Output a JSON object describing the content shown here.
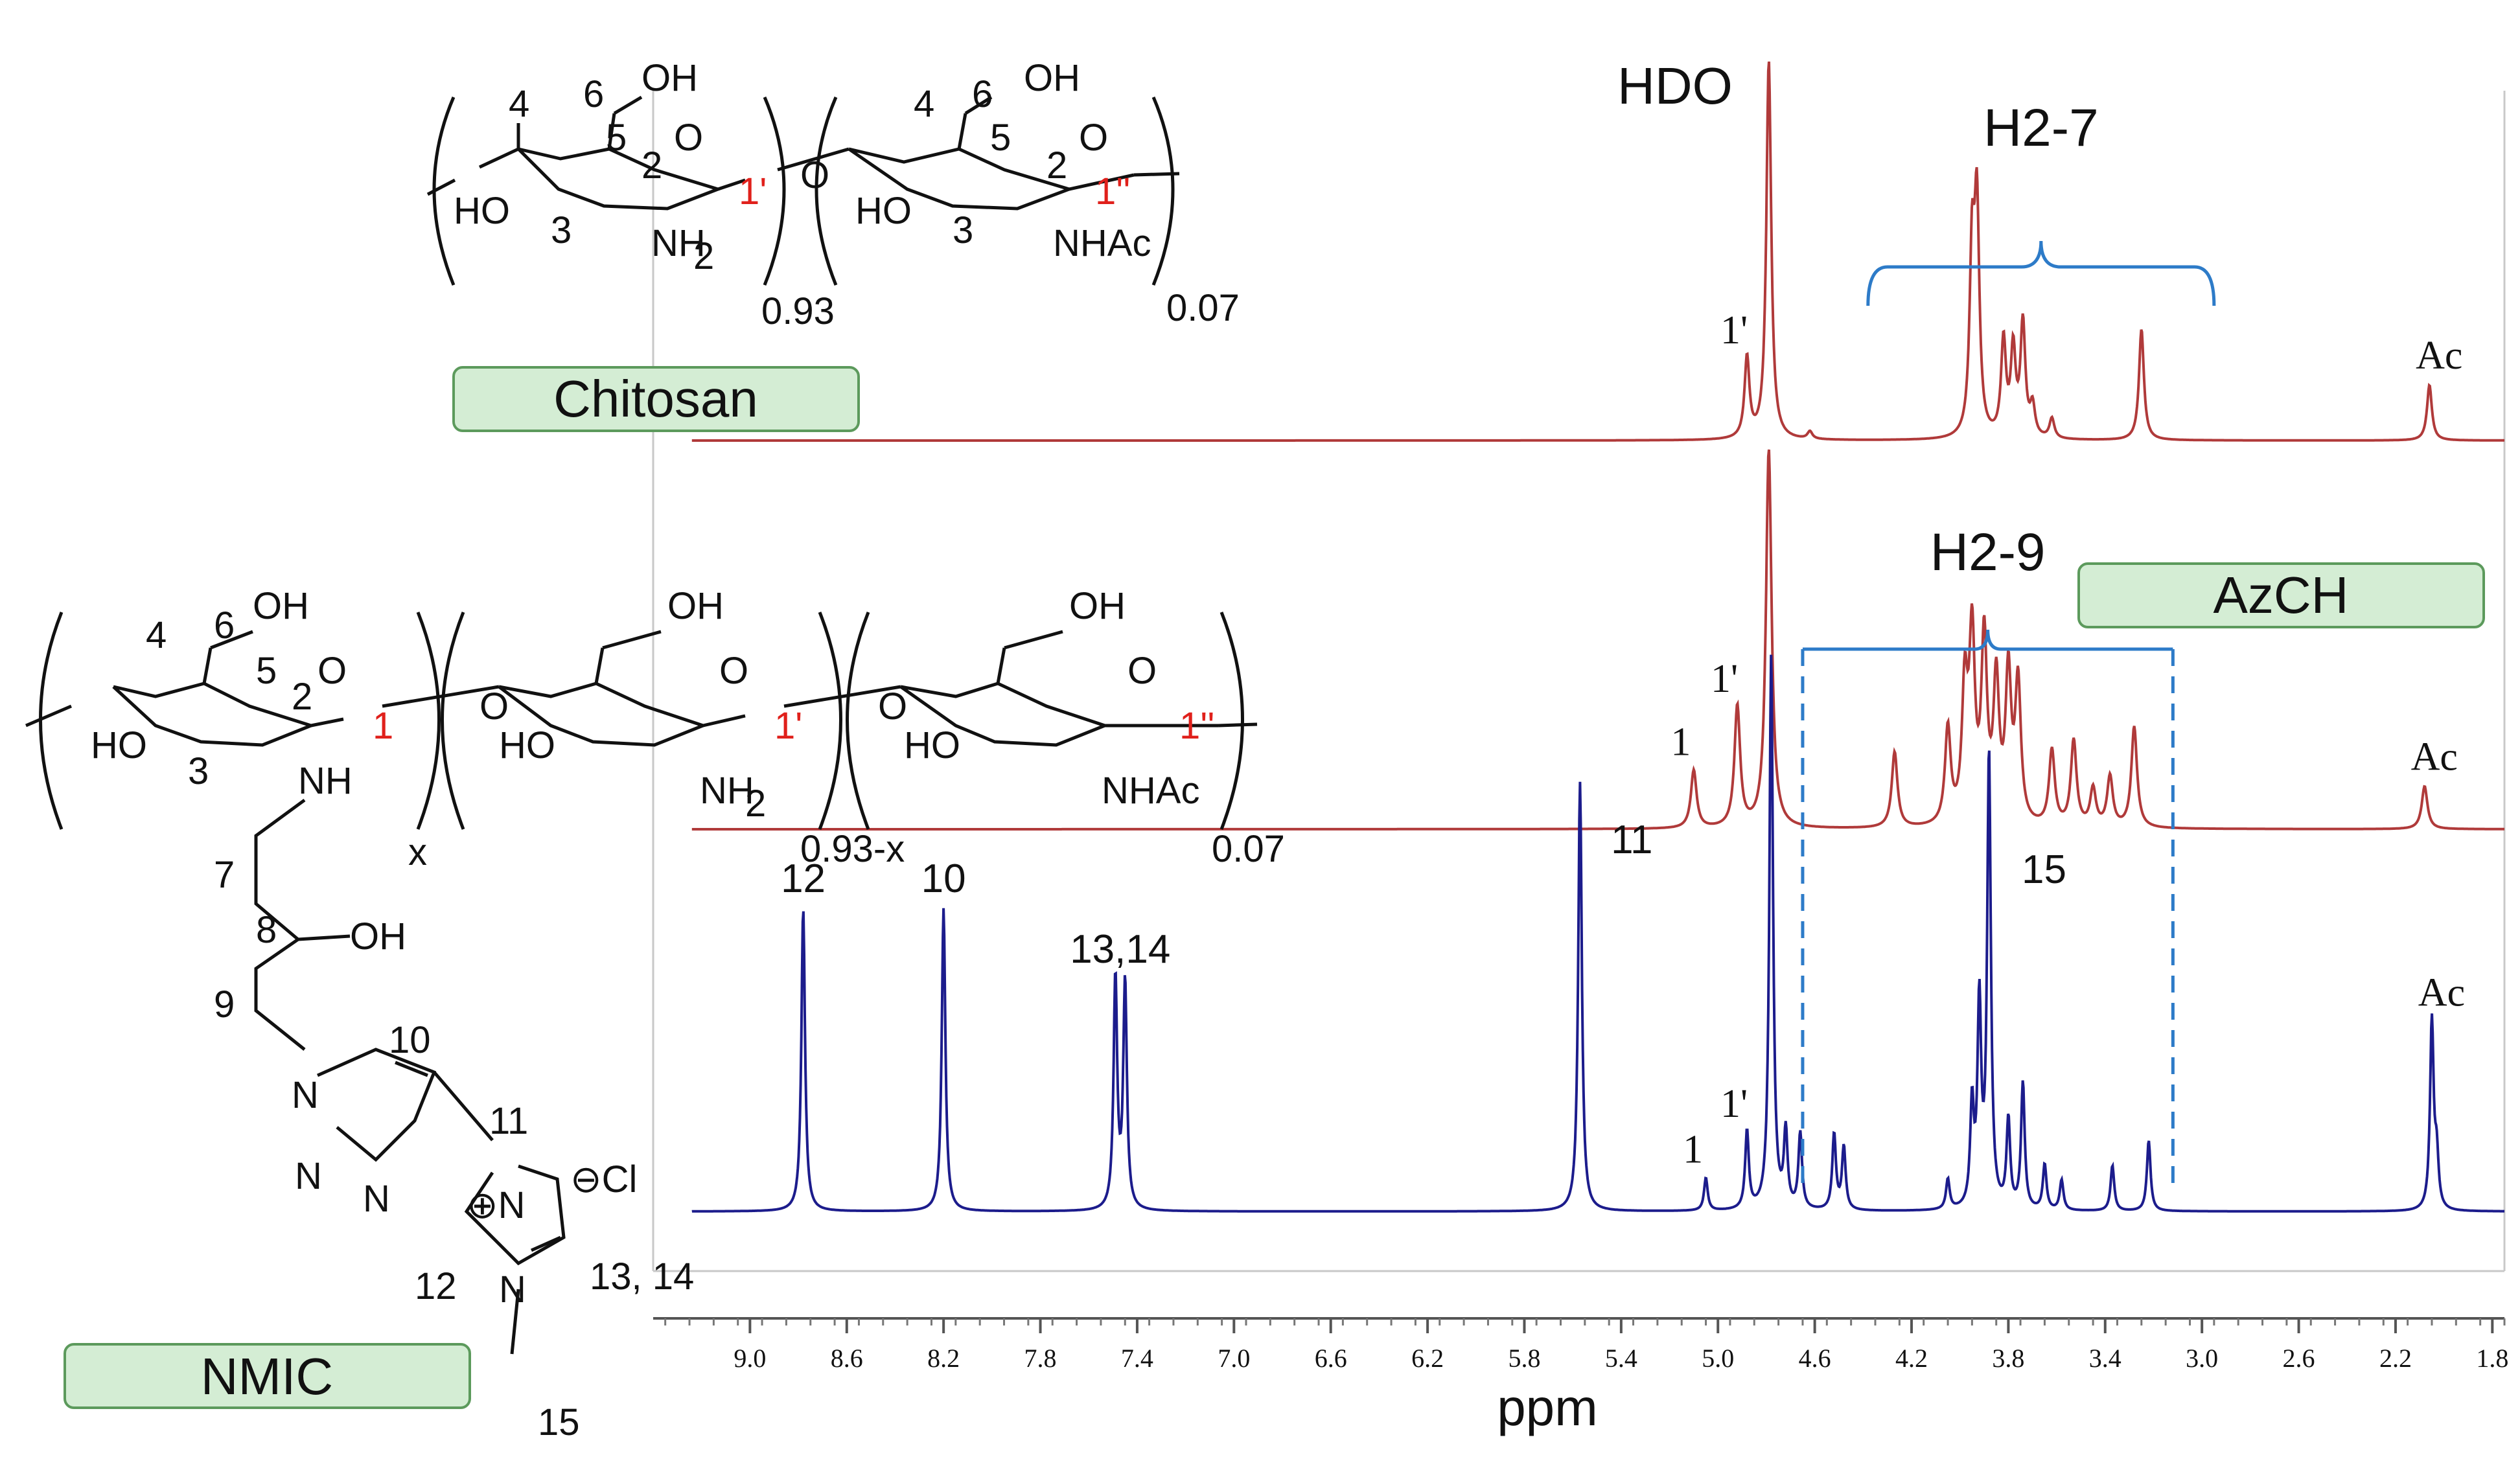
{
  "labels": {
    "chitosan_badge": "Chitosan",
    "azch_badge": "AzCH",
    "nmic_badge": "NMIC",
    "hdo": "HDO",
    "h2_7": "H2-7",
    "h2_9": "H2-9"
  },
  "structure_labels": {
    "chitosan": [
      "4",
      "6",
      "OH",
      "5",
      "O",
      "2",
      "1'",
      "HO",
      "3",
      "NH",
      "2",
      "0.93",
      "O",
      "4",
      "6",
      "OH",
      "5",
      "O",
      "2",
      "1''",
      "HO",
      "3",
      "NHAc",
      "0.07"
    ],
    "azch": [
      "4",
      "6",
      "OH",
      "5",
      "O",
      "2",
      "1",
      "HO",
      "3",
      "NH",
      "x",
      "O",
      "OH",
      "O",
      "1'",
      "HO",
      "NH",
      "2",
      "0.93-x",
      "O",
      "OH",
      "O",
      "1''",
      "HO",
      "NHAc",
      "0.07"
    ],
    "nmic": [
      "7",
      "8",
      "OH",
      "9",
      "N",
      "10",
      "N",
      "N",
      "11",
      "⊖Cl",
      "⊕N",
      "N",
      "12",
      "13, 14",
      "15"
    ]
  },
  "chart_data": {
    "type": "line",
    "title": "",
    "xlabel": "ppm",
    "ylabel": "",
    "xlim": [
      9.4,
      1.75
    ],
    "xdirection": "reversed",
    "x_ticks": [
      "9.0",
      "8.6",
      "8.2",
      "7.8",
      "7.4",
      "7.0",
      "6.6",
      "6.2",
      "5.8",
      "5.4",
      "5.0",
      "4.6",
      "4.2",
      "3.8",
      "3.4",
      "3.0",
      "2.6",
      "2.2",
      "1.8"
    ],
    "tick_values": [
      9.0,
      8.6,
      8.2,
      7.8,
      7.4,
      7.0,
      6.6,
      6.2,
      5.8,
      5.4,
      5.0,
      4.6,
      4.2,
      3.8,
      3.4,
      3.0,
      2.6,
      2.2,
      1.8
    ],
    "series": [
      {
        "name": "Chitosan",
        "color": "#b03a3a",
        "peaks": [
          [
            4.88,
            0.32
          ],
          [
            4.79,
            1.5
          ],
          [
            4.62,
            0.03
          ],
          [
            3.95,
            0.7
          ],
          [
            3.93,
            0.88
          ],
          [
            3.82,
            0.38
          ],
          [
            3.78,
            0.34
          ],
          [
            3.74,
            0.45
          ],
          [
            3.7,
            0.12
          ],
          [
            3.62,
            0.08
          ],
          [
            3.25,
            0.44
          ],
          [
            2.06,
            0.22
          ]
        ],
        "annotations": [
          {
            "label": "1'",
            "ppm": 4.88,
            "color": "#e0201b"
          },
          {
            "label": "Ac",
            "ppm": 2.06,
            "color": "#111111"
          }
        ]
      },
      {
        "name": "AzCH",
        "color": "#b03a3a",
        "peaks": [
          [
            5.1,
            0.23
          ],
          [
            4.92,
            0.48
          ],
          [
            4.79,
            1.5
          ],
          [
            4.27,
            0.3
          ],
          [
            4.05,
            0.38
          ],
          [
            3.98,
            0.52
          ],
          [
            3.95,
            0.72
          ],
          [
            3.9,
            0.72
          ],
          [
            3.85,
            0.55
          ],
          [
            3.8,
            0.58
          ],
          [
            3.76,
            0.55
          ],
          [
            3.62,
            0.3
          ],
          [
            3.53,
            0.34
          ],
          [
            3.45,
            0.15
          ],
          [
            3.38,
            0.2
          ],
          [
            3.28,
            0.4
          ],
          [
            2.08,
            0.17
          ]
        ],
        "annotations": [
          {
            "label": "1",
            "ppm": 5.1,
            "color": "#e0201b"
          },
          {
            "label": "1'",
            "ppm": 4.92,
            "color": "#e0201b"
          },
          {
            "label": "Ac",
            "ppm": 2.08,
            "color": "#111111"
          }
        ]
      },
      {
        "name": "NMIC",
        "color": "#1c1c8c",
        "peaks": [
          [
            8.78,
            1.2
          ],
          [
            8.2,
            1.2
          ],
          [
            7.49,
            0.92
          ],
          [
            7.45,
            0.9
          ],
          [
            5.57,
            1.7
          ],
          [
            5.05,
            0.13
          ],
          [
            4.88,
            0.31
          ],
          [
            4.78,
            2.2
          ],
          [
            4.72,
            0.3
          ],
          [
            4.66,
            0.3
          ],
          [
            4.52,
            0.3
          ],
          [
            4.48,
            0.25
          ],
          [
            4.05,
            0.12
          ],
          [
            3.95,
            0.4
          ],
          [
            3.92,
            0.8
          ],
          [
            3.88,
            1.8
          ],
          [
            3.8,
            0.35
          ],
          [
            3.74,
            0.5
          ],
          [
            3.65,
            0.18
          ],
          [
            3.58,
            0.12
          ],
          [
            3.37,
            0.18
          ],
          [
            3.22,
            0.28
          ],
          [
            2.05,
            0.75
          ],
          [
            2.03,
            0.2
          ]
        ],
        "annotations": [
          {
            "label": "12",
            "ppm": 8.78,
            "color": "#111111"
          },
          {
            "label": "10",
            "ppm": 8.2,
            "color": "#111111"
          },
          {
            "label": "13,14",
            "ppm": 7.47,
            "color": "#111111"
          },
          {
            "label": "11",
            "ppm": 5.57,
            "color": "#111111"
          },
          {
            "label": "1",
            "ppm": 5.05,
            "color": "#e0201b"
          },
          {
            "label": "1'",
            "ppm": 4.88,
            "color": "#e0201b"
          },
          {
            "label": "15",
            "ppm": 3.88,
            "color": "#111111"
          },
          {
            "label": "Ac",
            "ppm": 2.05,
            "color": "#111111"
          }
        ]
      }
    ],
    "brackets": [
      {
        "label": "H2-7",
        "from_ppm": 4.38,
        "to_ppm": 2.95,
        "color": "#2d7bc8"
      },
      {
        "label": "H2-9",
        "from_ppm": 4.65,
        "to_ppm": 3.12,
        "color": "#2d7bc8"
      }
    ]
  }
}
